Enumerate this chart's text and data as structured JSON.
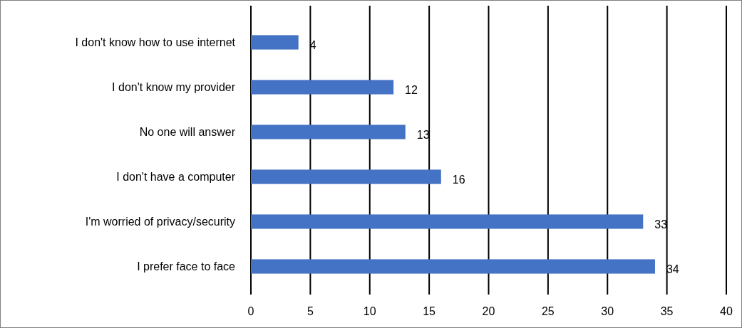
{
  "chart_data": {
    "type": "bar",
    "orientation": "horizontal",
    "categories": [
      "I don't know how to use internet",
      "I don't know my provider",
      "No one will answer",
      "I don't have a computer",
      "I'm worried of privacy/security",
      "I prefer face to face"
    ],
    "values": [
      4,
      12,
      13,
      16,
      33,
      34
    ],
    "color": "#4472c4",
    "xlim": [
      0,
      40
    ],
    "xticks": [
      0,
      5,
      10,
      15,
      20,
      25,
      30,
      35,
      40
    ],
    "grid": "x",
    "data_labels": true
  }
}
